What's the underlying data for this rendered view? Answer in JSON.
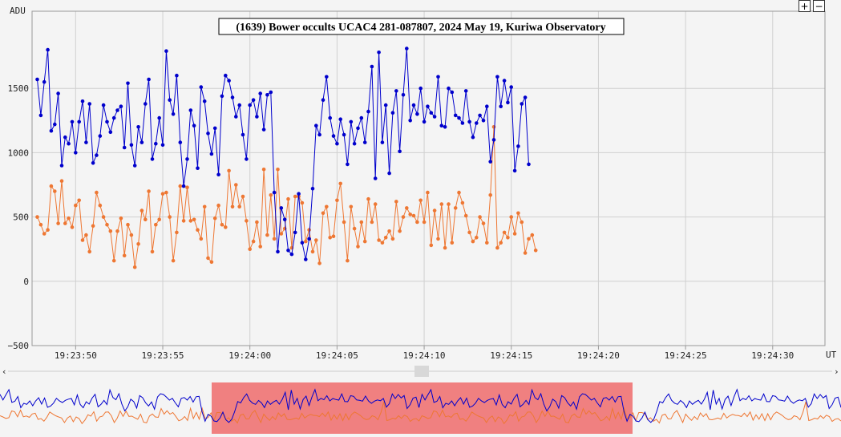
{
  "chart_data": {
    "type": "line",
    "title": "(1639) Bower occults UCAC4 281-087807, 2024 May 19, Kuriwa Observatory",
    "ylabel": "ADU",
    "xlabel": "UT",
    "ylim": [
      -500,
      2100
    ],
    "xlim": [
      "19:23:47.5",
      "19:24:33.0"
    ],
    "yticks": [
      "−500",
      "0",
      "500",
      "1000",
      "1500"
    ],
    "xticks": [
      "19:23:50",
      "19:23:55",
      "19:24:00",
      "19:24:05",
      "19:24:10",
      "19:24:15",
      "19:24:20",
      "19:24:25",
      "19:24:30"
    ],
    "grid": true,
    "point_spacing_s": 0.2,
    "series": [
      {
        "color": "#0000cc",
        "values": [
          1570,
          1290,
          1550,
          1800,
          1170,
          1220,
          1460,
          900,
          1120,
          1070,
          1240,
          1000,
          1240,
          1400,
          1080,
          1380,
          920,
          980,
          1130,
          1370,
          1240,
          1160,
          1270,
          1330,
          1360,
          1040,
          1540,
          1060,
          900,
          1200,
          1080,
          1380,
          1570,
          950,
          1070,
          1270,
          1060,
          1790,
          1410,
          1300,
          1600,
          1080,
          740,
          950,
          1330,
          1210,
          880,
          1510,
          1400,
          1150,
          990,
          1190,
          830,
          1440,
          1600,
          1560,
          1430,
          1280,
          1370,
          1140,
          950,
          1370,
          1410,
          1280,
          1460,
          1180,
          1450,
          1470,
          690,
          230,
          570,
          480,
          240,
          210,
          380,
          680,
          300,
          170,
          330,
          720,
          1210,
          1140,
          1410,
          1590,
          1270,
          1130,
          1070,
          1260,
          1140,
          910,
          1240,
          1070,
          1190,
          1270,
          1080,
          1320,
          1670,
          800,
          1780,
          1080,
          1370,
          840,
          1310,
          1480,
          1010,
          1450,
          1810,
          1250,
          1370,
          1300,
          1500,
          1240,
          1360,
          1310,
          1280,
          1590,
          1210,
          1200,
          1500,
          1470,
          1290,
          1270,
          1230,
          1480,
          1240,
          1120,
          1230,
          1290,
          1250,
          1360,
          930,
          1100,
          1590,
          1360,
          1560,
          1390,
          1510,
          860,
          1050,
          1380,
          1430,
          910
        ]
      },
      {
        "color": "#ee7733",
        "values": [
          500,
          440,
          370,
          400,
          740,
          700,
          450,
          780,
          450,
          490,
          420,
          590,
          630,
          320,
          360,
          230,
          430,
          690,
          590,
          500,
          440,
          390,
          160,
          390,
          490,
          200,
          440,
          360,
          110,
          290,
          550,
          480,
          700,
          230,
          440,
          480,
          680,
          690,
          500,
          160,
          380,
          740,
          470,
          730,
          470,
          480,
          400,
          330,
          580,
          180,
          150,
          490,
          590,
          440,
          420,
          860,
          580,
          750,
          580,
          660,
          470,
          250,
          310,
          460,
          270,
          870,
          360,
          670,
          330,
          870,
          370,
          410,
          640,
          260,
          660,
          660,
          610,
          310,
          400,
          230,
          320,
          140,
          530,
          580,
          340,
          350,
          630,
          760,
          460,
          160,
          580,
          410,
          270,
          460,
          310,
          640,
          460,
          600,
          320,
          300,
          340,
          390,
          330,
          620,
          390,
          500,
          570,
          520,
          510,
          460,
          630,
          460,
          690,
          280,
          550,
          330,
          600,
          260,
          600,
          300,
          570,
          690,
          610,
          510,
          380,
          310,
          340,
          500,
          450,
          300,
          670,
          1200,
          260,
          300,
          380,
          340,
          500,
          370,
          530,
          460,
          220,
          330,
          360,
          240
        ]
      }
    ],
    "navigator": {
      "left_arrow": "‹",
      "right_arrow": "›",
      "window_start": "19:23:59.7",
      "window_end": "19:24:20.7"
    }
  },
  "controls": {
    "zoom_in": "+",
    "zoom_out": "−"
  },
  "colors": {
    "background": "#f4f4f4",
    "grid": "#d0d0d0",
    "navigator_window": "#f08080"
  }
}
